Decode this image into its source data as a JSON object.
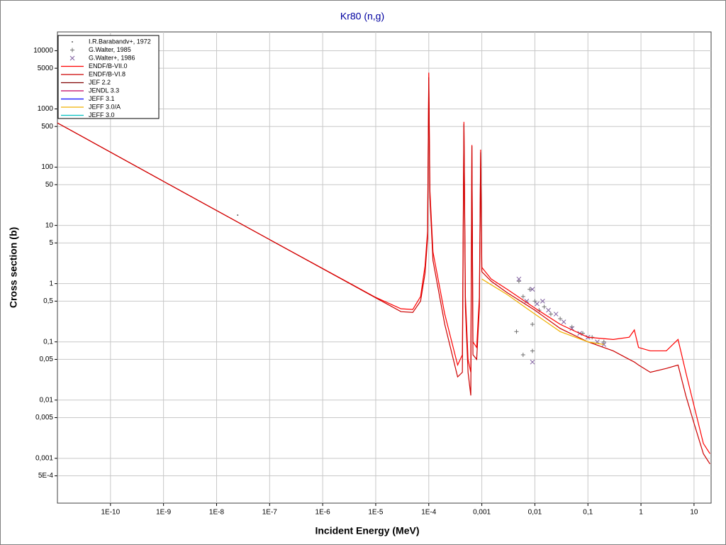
{
  "chart_data": {
    "type": "line",
    "title": "Kr80 (n,g)",
    "x_label": "Incident Energy (MeV)",
    "y_label": "Cross section (b)",
    "xlog": true,
    "ylog": true,
    "grid": true,
    "legend": "upper left",
    "xlim": [
      1e-11,
      21
    ],
    "ylim": [
      0.00017,
      21000
    ],
    "xticks": [
      {
        "value": 1e-10,
        "label": "1E-10"
      },
      {
        "value": 1e-09,
        "label": "1E-9"
      },
      {
        "value": 1e-08,
        "label": "1E-8"
      },
      {
        "value": 1e-07,
        "label": "1E-7"
      },
      {
        "value": 1e-06,
        "label": "1E-6"
      },
      {
        "value": 1e-05,
        "label": "1E-5"
      },
      {
        "value": 0.0001,
        "label": "1E-4"
      },
      {
        "value": 0.001,
        "label": "0,001"
      },
      {
        "value": 0.01,
        "label": "0,01"
      },
      {
        "value": 0.1,
        "label": "0,1"
      },
      1,
      10
    ],
    "yticks": [
      10000,
      5000,
      1000,
      500,
      100,
      50,
      10,
      5,
      1,
      {
        "value": 0.5,
        "label": "0,5"
      },
      {
        "value": 0.1,
        "label": "0,1"
      },
      {
        "value": 0.05,
        "label": "0,05"
      },
      {
        "value": 0.01,
        "label": "0,01"
      },
      {
        "value": 0.005,
        "label": "0,005"
      },
      {
        "value": 0.001,
        "label": "0,001"
      },
      {
        "value": 0.0005,
        "label": "5E-4"
      }
    ],
    "series": [
      {
        "name": "I.R.Barabandv+, 1972",
        "style": "dot",
        "color": "#606060",
        "x": [
          2.5e-08
        ],
        "values": [
          15
        ]
      },
      {
        "name": "G.Walter, 1985",
        "style": "plus",
        "color": "#707070",
        "x": [
          0.0045,
          0.005,
          0.006,
          0.008,
          0.009,
          0.01,
          0.012,
          0.015,
          0.02,
          0.03,
          0.05,
          0.08,
          0.12,
          0.2,
          0.006,
          0.009
        ],
        "values": [
          0.15,
          1.1,
          0.06,
          0.8,
          0.07,
          0.5,
          0.35,
          0.4,
          0.3,
          0.25,
          0.18,
          0.14,
          0.12,
          0.1,
          0.6,
          0.2
        ]
      },
      {
        "name": "G.Walter+, 1986",
        "style": "cross",
        "color": "#8060a0",
        "x": [
          0.005,
          0.007,
          0.009,
          0.011,
          0.014,
          0.018,
          0.025,
          0.035,
          0.05,
          0.07,
          0.1,
          0.15,
          0.2,
          0.009
        ],
        "values": [
          1.2,
          0.5,
          0.8,
          0.45,
          0.5,
          0.35,
          0.3,
          0.22,
          0.17,
          0.14,
          0.12,
          0.1,
          0.09,
          0.045
        ]
      },
      {
        "name": "ENDF/B-VII.0",
        "style": "line",
        "color": "#ff0000",
        "x": [
          1e-11,
          1e-09,
          1e-07,
          1e-05,
          3e-05,
          5e-05,
          7e-05,
          8.5e-05,
          9.5e-05,
          0.0001,
          0.000105,
          0.00012,
          0.0002,
          0.00035,
          0.00043,
          0.00046,
          0.00049,
          0.00055,
          0.00062,
          0.00065,
          0.00068,
          0.0008,
          0.0009,
          0.00095,
          0.001,
          0.0015,
          0.003,
          0.01,
          0.03,
          0.1,
          0.3,
          0.6,
          0.75,
          0.9,
          1.5,
          3,
          5,
          7,
          10,
          15,
          20
        ],
        "values": [
          575,
          57,
          5.7,
          0.58,
          0.37,
          0.36,
          0.6,
          2,
          8,
          4200,
          40,
          3.5,
          0.3,
          0.04,
          0.06,
          600,
          0.6,
          0.05,
          0.03,
          240,
          0.1,
          0.08,
          0.6,
          200,
          1.9,
          1.2,
          0.8,
          0.38,
          0.2,
          0.12,
          0.11,
          0.12,
          0.16,
          0.08,
          0.07,
          0.07,
          0.11,
          0.03,
          0.008,
          0.0018,
          0.0012
        ]
      },
      {
        "name": "ENDF/B-VI.8",
        "style": "line",
        "color": "#cc0000",
        "x": [
          1e-11,
          1e-09,
          1e-07,
          1e-05,
          3e-05,
          5e-05,
          7e-05,
          8.5e-05,
          9.5e-05,
          0.0001,
          0.000105,
          0.00012,
          0.0002,
          0.00035,
          0.00043,
          0.00046,
          0.00049,
          0.00055,
          0.00062,
          0.00065,
          0.00068,
          0.0008,
          0.0009,
          0.00095,
          0.001,
          0.0015,
          0.003,
          0.01,
          0.03,
          0.1,
          0.3,
          0.6,
          0.75,
          0.9,
          1.5,
          3,
          5,
          7,
          10,
          15,
          20
        ],
        "values": [
          575,
          57,
          5.7,
          0.57,
          0.33,
          0.32,
          0.5,
          1.5,
          6,
          3500,
          30,
          2.5,
          0.2,
          0.025,
          0.03,
          550,
          0.4,
          0.03,
          0.012,
          230,
          0.06,
          0.05,
          0.4,
          180,
          1.6,
          1.1,
          0.7,
          0.35,
          0.17,
          0.1,
          0.07,
          0.05,
          0.045,
          0.04,
          0.03,
          0.035,
          0.04,
          0.012,
          0.004,
          0.0012,
          0.0008
        ]
      },
      {
        "name": "JEF 2.2",
        "style": "line",
        "color": "#800000",
        "x": [],
        "values": []
      },
      {
        "name": "JENDL 3.3",
        "style": "line",
        "color": "#c00060",
        "x": [],
        "values": []
      },
      {
        "name": "JEFF 3.1",
        "style": "line",
        "color": "#0000ff",
        "x": [],
        "values": []
      },
      {
        "name": "JEFF 3.0/A",
        "style": "line",
        "color": "#f0b000",
        "x": [
          0.001,
          0.003,
          0.01,
          0.03,
          0.1,
          0.2
        ],
        "values": [
          1.2,
          0.65,
          0.3,
          0.15,
          0.1,
          0.09
        ]
      },
      {
        "name": "JEFF 3.0",
        "style": "line",
        "color": "#00c0c0",
        "x": [],
        "values": []
      }
    ]
  }
}
